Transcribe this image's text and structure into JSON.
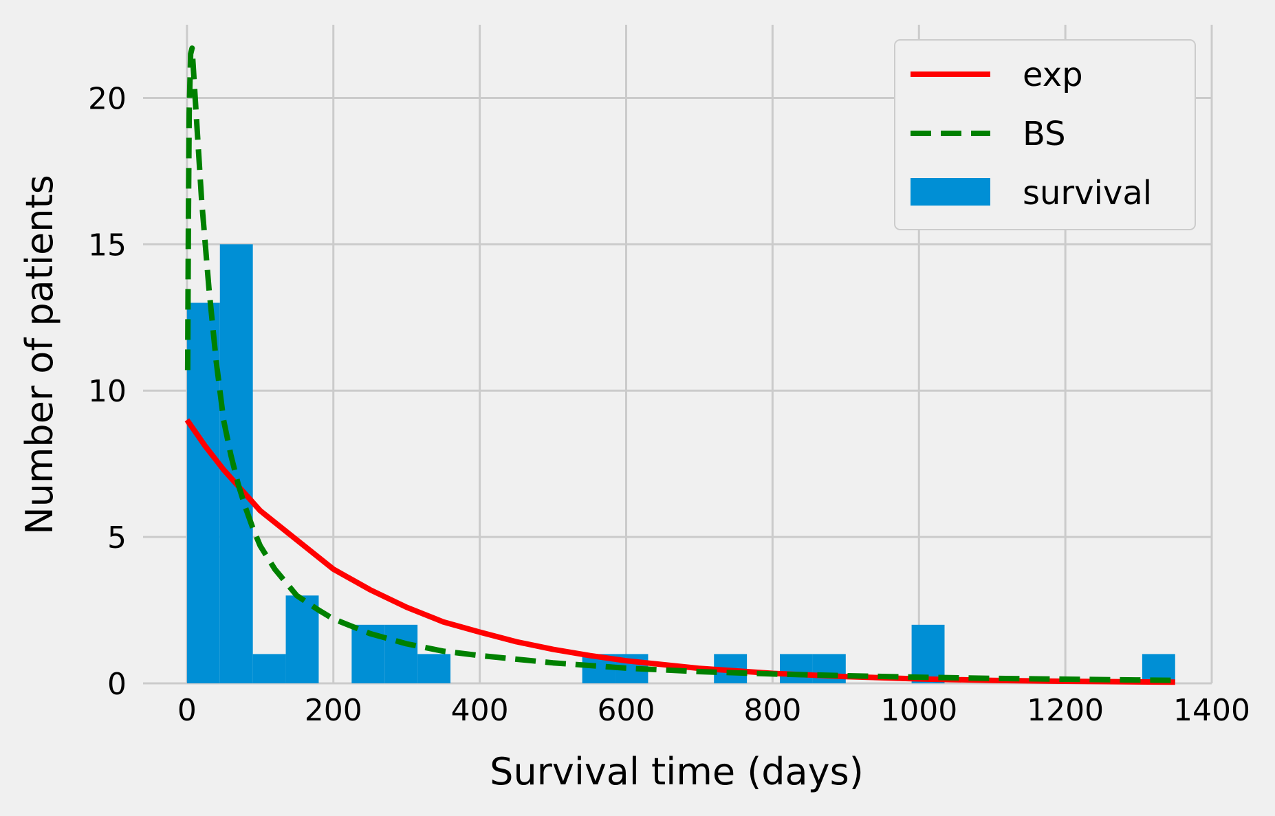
{
  "chart_data": {
    "type": "histogram",
    "xlabel": "Survival time (days)",
    "ylabel": "Number of patients",
    "xlim": [
      -60,
      1400
    ],
    "ylim": [
      0,
      22.5
    ],
    "xticks": [
      0,
      200,
      400,
      600,
      800,
      1000,
      1200,
      1400
    ],
    "yticks": [
      0,
      5,
      10,
      15,
      20
    ],
    "grid": true,
    "legend": {
      "location": "top-right",
      "entries": [
        "exp",
        "BS",
        "survival"
      ]
    },
    "histogram": {
      "name": "survival",
      "color": "#008fd5",
      "bin_width": 45,
      "bins": [
        {
          "x0": 0,
          "x1": 45,
          "count": 13
        },
        {
          "x0": 45,
          "x1": 90,
          "count": 15
        },
        {
          "x0": 90,
          "x1": 135,
          "count": 1
        },
        {
          "x0": 135,
          "x1": 180,
          "count": 3
        },
        {
          "x0": 225,
          "x1": 270,
          "count": 2
        },
        {
          "x0": 270,
          "x1": 315,
          "count": 2
        },
        {
          "x0": 315,
          "x1": 360,
          "count": 1
        },
        {
          "x0": 540,
          "x1": 585,
          "count": 1
        },
        {
          "x0": 585,
          "x1": 630,
          "count": 1
        },
        {
          "x0": 720,
          "x1": 765,
          "count": 1
        },
        {
          "x0": 810,
          "x1": 855,
          "count": 1
        },
        {
          "x0": 855,
          "x1": 900,
          "count": 1
        },
        {
          "x0": 990,
          "x1": 1035,
          "count": 2
        },
        {
          "x0": 1305,
          "x1": 1350,
          "count": 1
        }
      ]
    },
    "series": [
      {
        "name": "exp",
        "color": "#ff0000",
        "style": "solid",
        "x": [
          0,
          25,
          50,
          75,
          100,
          150,
          200,
          250,
          300,
          350,
          400,
          450,
          500,
          550,
          600,
          700,
          800,
          900,
          1000,
          1100,
          1200,
          1350
        ],
        "y": [
          9.0,
          8.1,
          7.3,
          6.6,
          5.9,
          4.9,
          3.9,
          3.2,
          2.6,
          2.1,
          1.75,
          1.42,
          1.16,
          0.95,
          0.77,
          0.51,
          0.34,
          0.23,
          0.15,
          0.1,
          0.07,
          0.04
        ]
      },
      {
        "name": "BS",
        "color": "#008000",
        "style": "dashed",
        "x": [
          1,
          2,
          3,
          5,
          7,
          10,
          15,
          20,
          30,
          40,
          50,
          60,
          70,
          80,
          90,
          100,
          120,
          150,
          180,
          200,
          250,
          300,
          350,
          400,
          500,
          600,
          700,
          800,
          900,
          1000,
          1100,
          1200,
          1350
        ],
        "y": [
          10.7,
          16,
          19.5,
          21.5,
          21.7,
          20.5,
          18.5,
          16.5,
          13.5,
          11.0,
          9.0,
          7.8,
          6.8,
          6.0,
          5.3,
          4.7,
          3.9,
          3.0,
          2.5,
          2.2,
          1.7,
          1.35,
          1.1,
          0.95,
          0.7,
          0.52,
          0.4,
          0.32,
          0.26,
          0.21,
          0.17,
          0.14,
          0.1
        ]
      }
    ]
  }
}
